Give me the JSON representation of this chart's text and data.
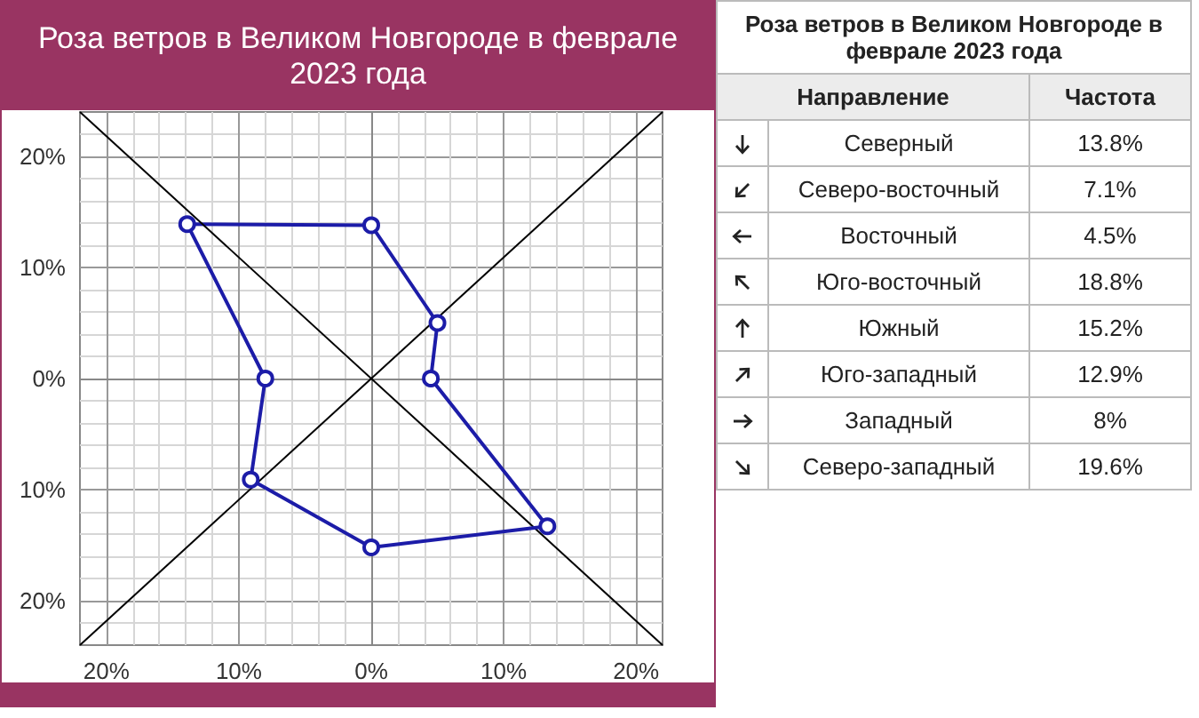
{
  "chart_data": [
    {
      "type": "line",
      "title": "Роза ветров в Великом Новгороде в феврале 2023 года",
      "x": [
        0,
        5.0,
        4.5,
        13.3,
        0,
        -9.1,
        -8,
        -13.9
      ],
      "marker": "circle",
      "grid": true,
      "series": [
        {
          "color": "#1c1ca8",
          "values": [
            13.8,
            5.0,
            0,
            -13.3,
            -15.2,
            -9.1,
            0,
            13.9
          ]
        },
        {
          "color": "#1c1ca8",
          "marker": "none",
          "x": [
            -13.9,
            0
          ],
          "values": [
            13.9,
            13.8
          ]
        },
        {
          "color": "#000000",
          "marker": "none",
          "x": [
            -22,
            22
          ],
          "values": [
            -24,
            24
          ]
        },
        {
          "color": "#000000",
          "marker": "none",
          "x": [
            -22,
            22
          ],
          "values": [
            24,
            -24
          ]
        }
      ],
      "xlim": [
        -22,
        22
      ],
      "ylim": [
        -24,
        24
      ],
      "xticks": [
        {
          "value": -20,
          "label": "20%"
        },
        {
          "value": -10,
          "label": "10%"
        },
        {
          "value": 0,
          "label": "0%"
        },
        {
          "value": 10,
          "label": "10%"
        },
        {
          "value": 20,
          "label": "20%"
        }
      ],
      "yticks": [
        {
          "value": -20,
          "label": "20%"
        },
        {
          "value": -10,
          "label": "10%"
        },
        {
          "value": 0,
          "label": "0%"
        },
        {
          "value": 10,
          "label": "10%"
        },
        {
          "value": 20,
          "label": "20%"
        }
      ]
    },
    {
      "type": "other",
      "title": "Роза ветров в Великом Новгороде в феврале 2023 года",
      "annotations": [
        "Направление",
        "Частота"
      ],
      "categories": [
        "Северный",
        "Северо-восточный",
        "Восточный",
        "Юго-восточный",
        "Южный",
        "Юго-западный",
        "Западный",
        "Северо-западный"
      ],
      "value_labels": [
        "13.8%",
        "7.1%",
        "4.5%",
        "18.8%",
        "15.2%",
        "12.9%",
        "8%",
        "19.6%"
      ]
    }
  ]
}
